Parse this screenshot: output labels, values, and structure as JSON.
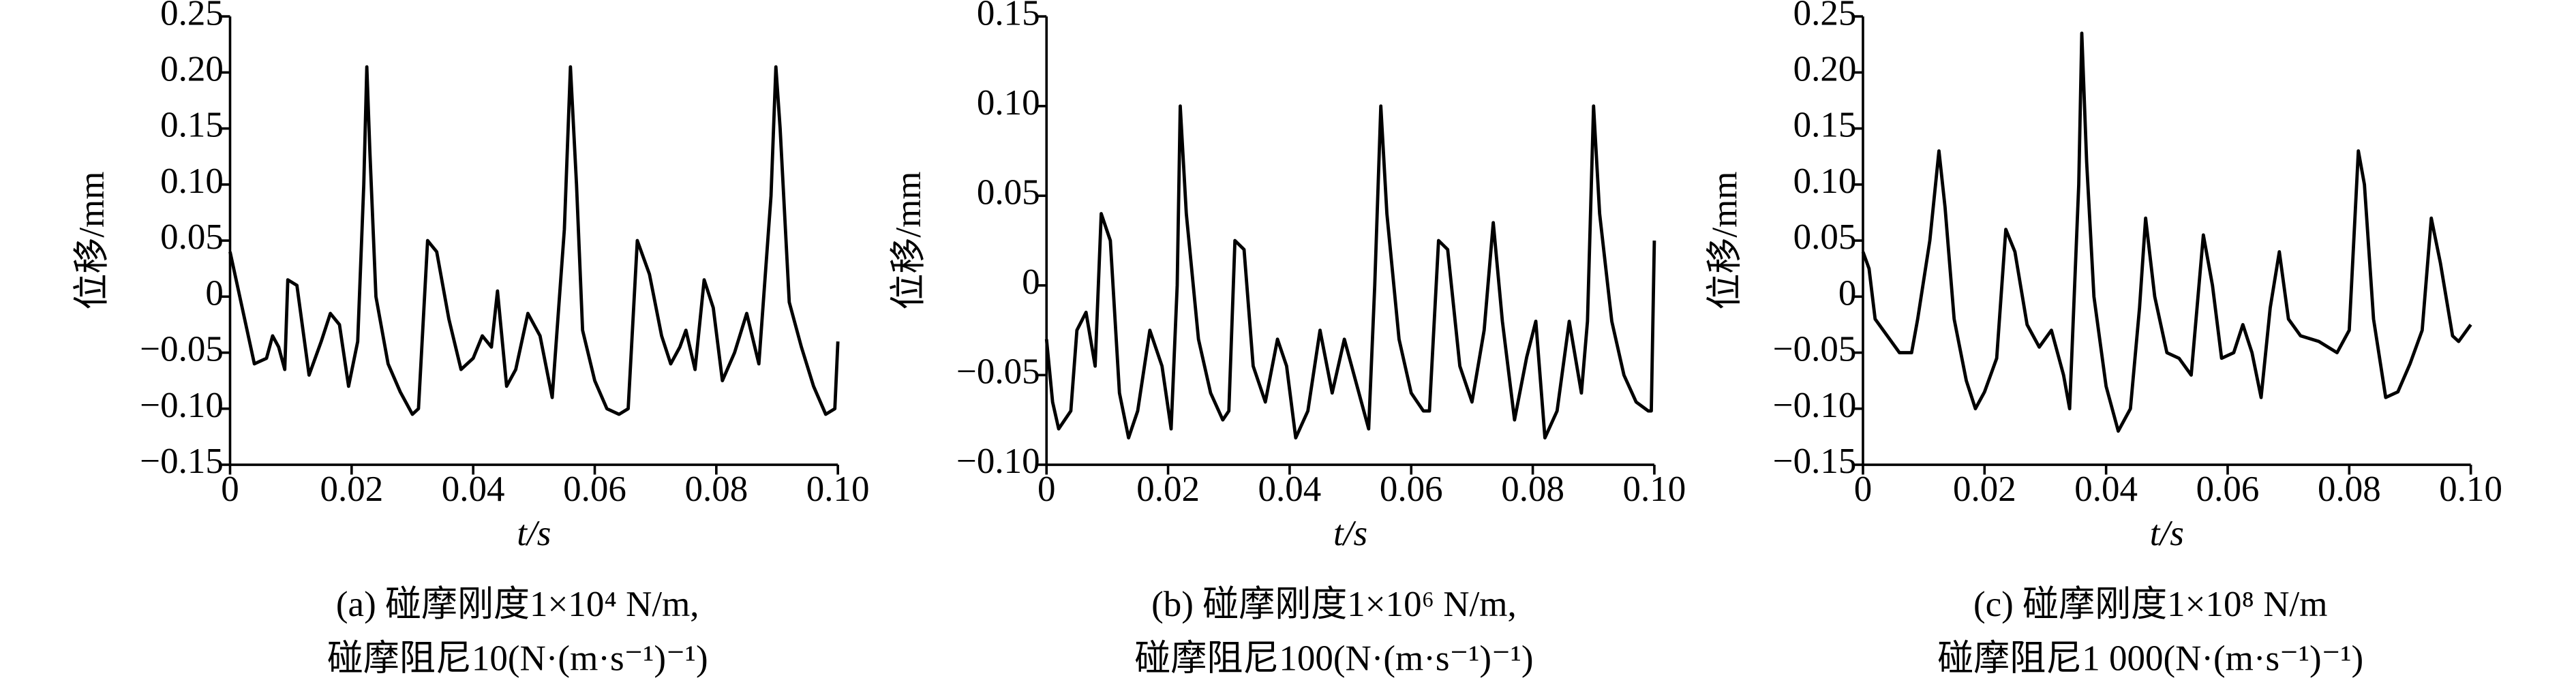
{
  "chart_data": [
    {
      "type": "line",
      "ylabel": "位移/mm",
      "xlabel": "t/s",
      "caption": [
        "(a) 碰摩刚度1×10⁴ N/m,",
        "碰摩阻尼10(N·(m·s⁻¹)⁻¹)"
      ],
      "color": "#000000",
      "xlim": [
        0,
        0.1
      ],
      "xticks": [
        0,
        0.02,
        0.04,
        0.06,
        0.08,
        {
          "value": 0.1,
          "label": "0.10"
        }
      ],
      "ylim": [
        -0.15,
        0.25
      ],
      "yticks": [
        {
          "value": -0.15,
          "label": "−0.15"
        },
        {
          "value": -0.1,
          "label": "−0.10"
        },
        {
          "value": -0.05,
          "label": "−0.05"
        },
        0,
        0.05,
        {
          "value": 0.1,
          "label": "0.10"
        },
        0.15,
        {
          "value": 0.2,
          "label": "0.20"
        },
        0.25
      ],
      "x": [
        0,
        0.002,
        0.004,
        0.006,
        0.007,
        0.008,
        0.009,
        0.0095,
        0.011,
        0.013,
        0.015,
        0.0165,
        0.018,
        0.0195,
        0.021,
        0.022,
        0.0225,
        0.023,
        0.024,
        0.026,
        0.028,
        0.03,
        0.031,
        0.0325,
        0.034,
        0.036,
        0.038,
        0.04,
        0.0415,
        0.043,
        0.044,
        0.0455,
        0.047,
        0.049,
        0.051,
        0.053,
        0.055,
        0.056,
        0.057,
        0.058,
        0.06,
        0.062,
        0.064,
        0.0655,
        0.067,
        0.069,
        0.071,
        0.0725,
        0.074,
        0.075,
        0.0765,
        0.078,
        0.0795,
        0.081,
        0.083,
        0.085,
        0.087,
        0.089,
        0.0898,
        0.0905,
        0.092,
        0.094,
        0.096,
        0.098,
        0.0995,
        0.1
      ],
      "values": [
        0.04,
        -0.01,
        -0.06,
        -0.055,
        -0.035,
        -0.045,
        -0.065,
        0.015,
        0.01,
        -0.07,
        -0.04,
        -0.015,
        -0.025,
        -0.08,
        -0.04,
        0.1,
        0.205,
        0.13,
        0,
        -0.06,
        -0.085,
        -0.105,
        -0.1,
        0.05,
        0.04,
        -0.02,
        -0.065,
        -0.055,
        -0.035,
        -0.045,
        0.005,
        -0.08,
        -0.065,
        -0.015,
        -0.035,
        -0.09,
        0.06,
        0.205,
        0.1,
        -0.03,
        -0.075,
        -0.1,
        -0.105,
        -0.1,
        0.05,
        0.02,
        -0.035,
        -0.06,
        -0.045,
        -0.03,
        -0.065,
        0.015,
        -0.01,
        -0.075,
        -0.05,
        -0.015,
        -0.06,
        0.09,
        0.205,
        0.15,
        -0.005,
        -0.045,
        -0.08,
        -0.105,
        -0.1,
        -0.04
      ]
    },
    {
      "type": "line",
      "ylabel": "位移/mm",
      "xlabel": "t/s",
      "caption": [
        "(b) 碰摩刚度1×10⁶ N/m,",
        "碰摩阻尼100(N·(m·s⁻¹)⁻¹)"
      ],
      "color": "#000000",
      "xlim": [
        0,
        0.1
      ],
      "xticks": [
        0,
        0.02,
        0.04,
        0.06,
        0.08,
        {
          "value": 0.1,
          "label": "0.10"
        }
      ],
      "ylim": [
        -0.1,
        0.15
      ],
      "yticks": [
        {
          "value": -0.1,
          "label": "−0.10"
        },
        {
          "value": -0.05,
          "label": "−0.05"
        },
        0,
        0.05,
        {
          "value": 0.1,
          "label": "0.10"
        },
        0.15
      ],
      "x": [
        0,
        0.001,
        0.002,
        0.004,
        0.005,
        0.0065,
        0.008,
        0.009,
        0.0105,
        0.012,
        0.0135,
        0.015,
        0.017,
        0.019,
        0.0205,
        0.0215,
        0.022,
        0.023,
        0.025,
        0.027,
        0.029,
        0.03,
        0.031,
        0.0325,
        0.034,
        0.036,
        0.038,
        0.0395,
        0.041,
        0.043,
        0.045,
        0.047,
        0.049,
        0.051,
        0.053,
        0.054,
        0.055,
        0.056,
        0.058,
        0.06,
        0.062,
        0.063,
        0.0645,
        0.066,
        0.068,
        0.07,
        0.072,
        0.0735,
        0.075,
        0.077,
        0.079,
        0.0805,
        0.082,
        0.084,
        0.086,
        0.088,
        0.089,
        0.09,
        0.091,
        0.093,
        0.095,
        0.097,
        0.099,
        0.0995,
        0.1
      ],
      "values": [
        -0.03,
        -0.065,
        -0.08,
        -0.07,
        -0.025,
        -0.015,
        -0.045,
        0.04,
        0.025,
        -0.06,
        -0.085,
        -0.07,
        -0.025,
        -0.045,
        -0.08,
        0,
        0.1,
        0.04,
        -0.03,
        -0.06,
        -0.075,
        -0.07,
        0.025,
        0.02,
        -0.045,
        -0.065,
        -0.03,
        -0.045,
        -0.085,
        -0.07,
        -0.025,
        -0.06,
        -0.03,
        -0.055,
        -0.08,
        0,
        0.1,
        0.04,
        -0.03,
        -0.06,
        -0.07,
        -0.07,
        0.025,
        0.02,
        -0.045,
        -0.065,
        -0.025,
        0.035,
        -0.02,
        -0.075,
        -0.04,
        -0.02,
        -0.085,
        -0.07,
        -0.02,
        -0.06,
        -0.02,
        0.1,
        0.04,
        -0.02,
        -0.05,
        -0.065,
        -0.07,
        -0.07,
        0.025
      ]
    },
    {
      "type": "line",
      "ylabel": "位移/mm",
      "xlabel": "t/s",
      "caption": [
        "(c) 碰摩刚度1×10⁸ N/m",
        "碰摩阻尼1 000(N·(m·s⁻¹)⁻¹)"
      ],
      "color": "#000000",
      "xlim": [
        0,
        0.1
      ],
      "xticks": [
        0,
        0.02,
        0.04,
        0.06,
        0.08,
        {
          "value": 0.1,
          "label": "0.10"
        }
      ],
      "ylim": [
        -0.15,
        0.25
      ],
      "yticks": [
        {
          "value": -0.15,
          "label": "−0.15"
        },
        {
          "value": -0.1,
          "label": "−0.10"
        },
        {
          "value": -0.05,
          "label": "−0.05"
        },
        0,
        0.05,
        {
          "value": 0.1,
          "label": "0.10"
        },
        0.15,
        {
          "value": 0.2,
          "label": "0.20"
        },
        0.25
      ],
      "x": [
        0,
        0.001,
        0.002,
        0.004,
        0.006,
        0.008,
        0.009,
        0.011,
        0.0125,
        0.0135,
        0.015,
        0.017,
        0.0185,
        0.02,
        0.022,
        0.0235,
        0.025,
        0.027,
        0.029,
        0.031,
        0.033,
        0.034,
        0.0355,
        0.036,
        0.0368,
        0.038,
        0.04,
        0.042,
        0.044,
        0.0455,
        0.0465,
        0.048,
        0.05,
        0.052,
        0.054,
        0.056,
        0.0575,
        0.059,
        0.061,
        0.0625,
        0.064,
        0.0655,
        0.067,
        0.0685,
        0.07,
        0.072,
        0.075,
        0.078,
        0.08,
        0.0815,
        0.0825,
        0.084,
        0.086,
        0.088,
        0.09,
        0.092,
        0.0935,
        0.095,
        0.097,
        0.098,
        0.1
      ],
      "values": [
        0.04,
        0.025,
        -0.02,
        -0.035,
        -0.05,
        -0.05,
        -0.02,
        0.05,
        0.13,
        0.08,
        -0.02,
        -0.075,
        -0.1,
        -0.085,
        -0.055,
        0.06,
        0.04,
        -0.025,
        -0.045,
        -0.03,
        -0.07,
        -0.1,
        0.1,
        0.235,
        0.12,
        0,
        -0.08,
        -0.12,
        -0.1,
        -0.01,
        0.07,
        0,
        -0.05,
        -0.055,
        -0.07,
        0.055,
        0.01,
        -0.055,
        -0.05,
        -0.025,
        -0.05,
        -0.09,
        -0.01,
        0.04,
        -0.02,
        -0.035,
        -0.04,
        -0.05,
        -0.03,
        0.13,
        0.1,
        -0.02,
        -0.09,
        -0.085,
        -0.06,
        -0.03,
        0.07,
        0.03,
        -0.035,
        -0.04,
        -0.025
      ]
    }
  ]
}
